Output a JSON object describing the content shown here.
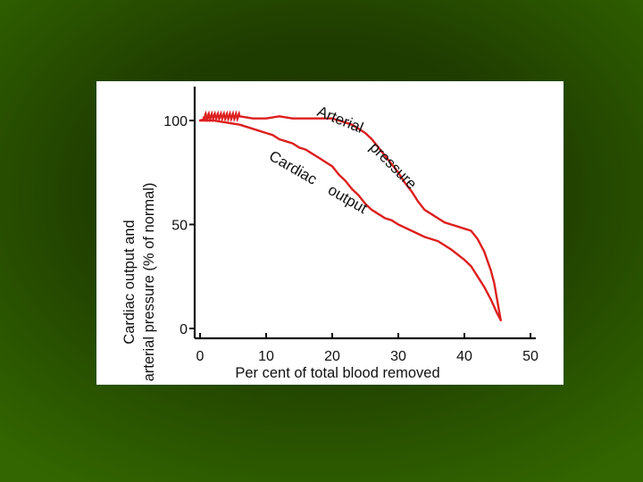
{
  "chart_data": {
    "type": "line",
    "xlabel": "Per cent of total blood removed",
    "ylabel_line1": "Cardiac output and",
    "ylabel_line2": "arterial pressure (% of normal)",
    "xlim": [
      0,
      50
    ],
    "ylim": [
      0,
      100
    ],
    "x_ticks": [
      "0",
      "10",
      "20",
      "30",
      "40",
      "50"
    ],
    "y_ticks": [
      "0",
      "50",
      "100"
    ],
    "grid": false,
    "legend": "none",
    "series": [
      {
        "name": "Arterial pressure",
        "color": "#dd1f1f",
        "x": [
          0,
          2,
          4,
          6,
          8,
          10,
          12,
          14,
          16,
          18,
          19,
          20,
          21,
          22,
          23,
          24,
          25,
          26,
          27,
          28,
          29,
          30,
          31,
          32,
          33,
          34,
          35,
          36,
          37,
          38,
          39,
          40,
          41,
          42,
          43,
          44,
          44.5,
          45,
          45.5
        ],
        "y": [
          100,
          102,
          102,
          102,
          101,
          101,
          102,
          101,
          101,
          101,
          101,
          101,
          100,
          99,
          98,
          96,
          94,
          91,
          87,
          83,
          79,
          75,
          70,
          66,
          61,
          57,
          55,
          53,
          51,
          50,
          49,
          48,
          47,
          43,
          37,
          28,
          22,
          13,
          4
        ]
      },
      {
        "name": "Cardiac output",
        "color": "#dd1f1f",
        "x": [
          0,
          2,
          4,
          6,
          8,
          9,
          10,
          11,
          12,
          13,
          14,
          15,
          16,
          17,
          18,
          19,
          20,
          21,
          22,
          23,
          24,
          25,
          26,
          27,
          28,
          29,
          30,
          32,
          34,
          36,
          38,
          40,
          41,
          42,
          43,
          44,
          45,
          45.5
        ],
        "y": [
          100,
          100,
          99,
          98,
          96,
          95,
          94,
          93,
          91,
          90,
          89,
          87,
          86,
          84,
          82,
          80,
          78,
          74,
          71,
          67,
          64,
          60,
          57,
          55,
          53,
          52,
          50,
          47,
          44,
          42,
          38,
          33,
          30,
          25,
          20,
          14,
          7,
          4
        ]
      }
    ],
    "annotations": [
      {
        "text": "Arterial",
        "series": "Arterial pressure"
      },
      {
        "text": "pressure",
        "series": "Arterial pressure"
      },
      {
        "text": "Cardiac",
        "series": "Cardiac output"
      },
      {
        "text": "output",
        "series": "Cardiac output"
      }
    ]
  }
}
